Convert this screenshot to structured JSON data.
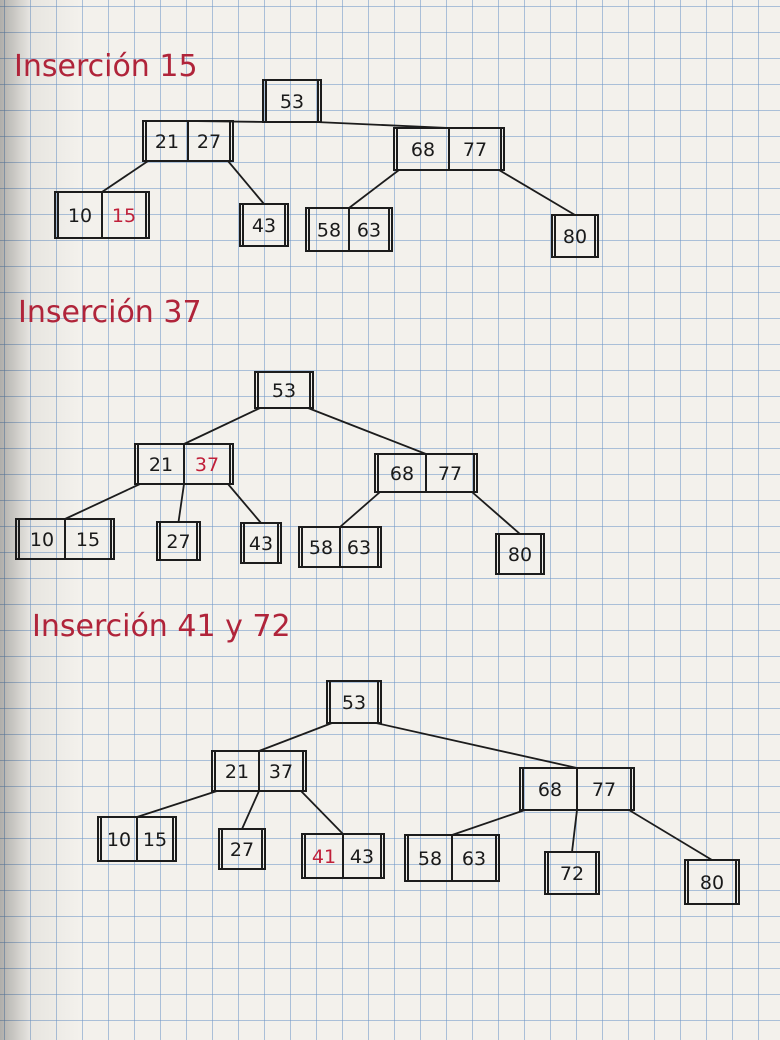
{
  "colors": {
    "ink": "#1c1c1c",
    "new_key": "#c0203a",
    "title": "#b0243a",
    "grid": "#6e96c8",
    "paper": "#f3f1ec"
  },
  "sections": [
    {
      "title": "Inserción 15",
      "nodes": [
        {
          "id": "s1-root",
          "keys": [
            "53"
          ]
        },
        {
          "id": "s1-l",
          "keys": [
            "21",
            "27"
          ]
        },
        {
          "id": "s1-r",
          "keys": [
            "68",
            "77"
          ]
        },
        {
          "id": "s1-ll",
          "keys": [
            "10",
            "15"
          ],
          "new": [
            "15"
          ]
        },
        {
          "id": "s1-lr",
          "keys": [
            "43"
          ]
        },
        {
          "id": "s1-rl",
          "keys": [
            "58",
            "63"
          ]
        },
        {
          "id": "s1-rr",
          "keys": [
            "80"
          ]
        }
      ]
    },
    {
      "title": "Inserción 37",
      "nodes": [
        {
          "id": "s2-root",
          "keys": [
            "53"
          ]
        },
        {
          "id": "s2-l",
          "keys": [
            "21",
            "37"
          ],
          "new": [
            "37"
          ]
        },
        {
          "id": "s2-r",
          "keys": [
            "68",
            "77"
          ]
        },
        {
          "id": "s2-ll",
          "keys": [
            "10",
            "15"
          ]
        },
        {
          "id": "s2-lm",
          "keys": [
            "27"
          ]
        },
        {
          "id": "s2-lr",
          "keys": [
            "43"
          ]
        },
        {
          "id": "s2-rl",
          "keys": [
            "58",
            "63"
          ]
        },
        {
          "id": "s2-rr",
          "keys": [
            "80"
          ]
        }
      ]
    },
    {
      "title": "Inserción 41 y 72",
      "nodes": [
        {
          "id": "s3-root",
          "keys": [
            "53"
          ]
        },
        {
          "id": "s3-l",
          "keys": [
            "21",
            "37"
          ]
        },
        {
          "id": "s3-r",
          "keys": [
            "68",
            "77"
          ]
        },
        {
          "id": "s3-ll",
          "keys": [
            "10",
            "15"
          ]
        },
        {
          "id": "s3-lm",
          "keys": [
            "27"
          ]
        },
        {
          "id": "s3-lr",
          "keys": [
            "41",
            "43"
          ],
          "new": [
            "41"
          ]
        },
        {
          "id": "s3-rl",
          "keys": [
            "58",
            "63"
          ]
        },
        {
          "id": "s3-rm",
          "keys": [
            "72"
          ]
        },
        {
          "id": "s3-rr",
          "keys": [
            "80"
          ]
        }
      ]
    }
  ]
}
